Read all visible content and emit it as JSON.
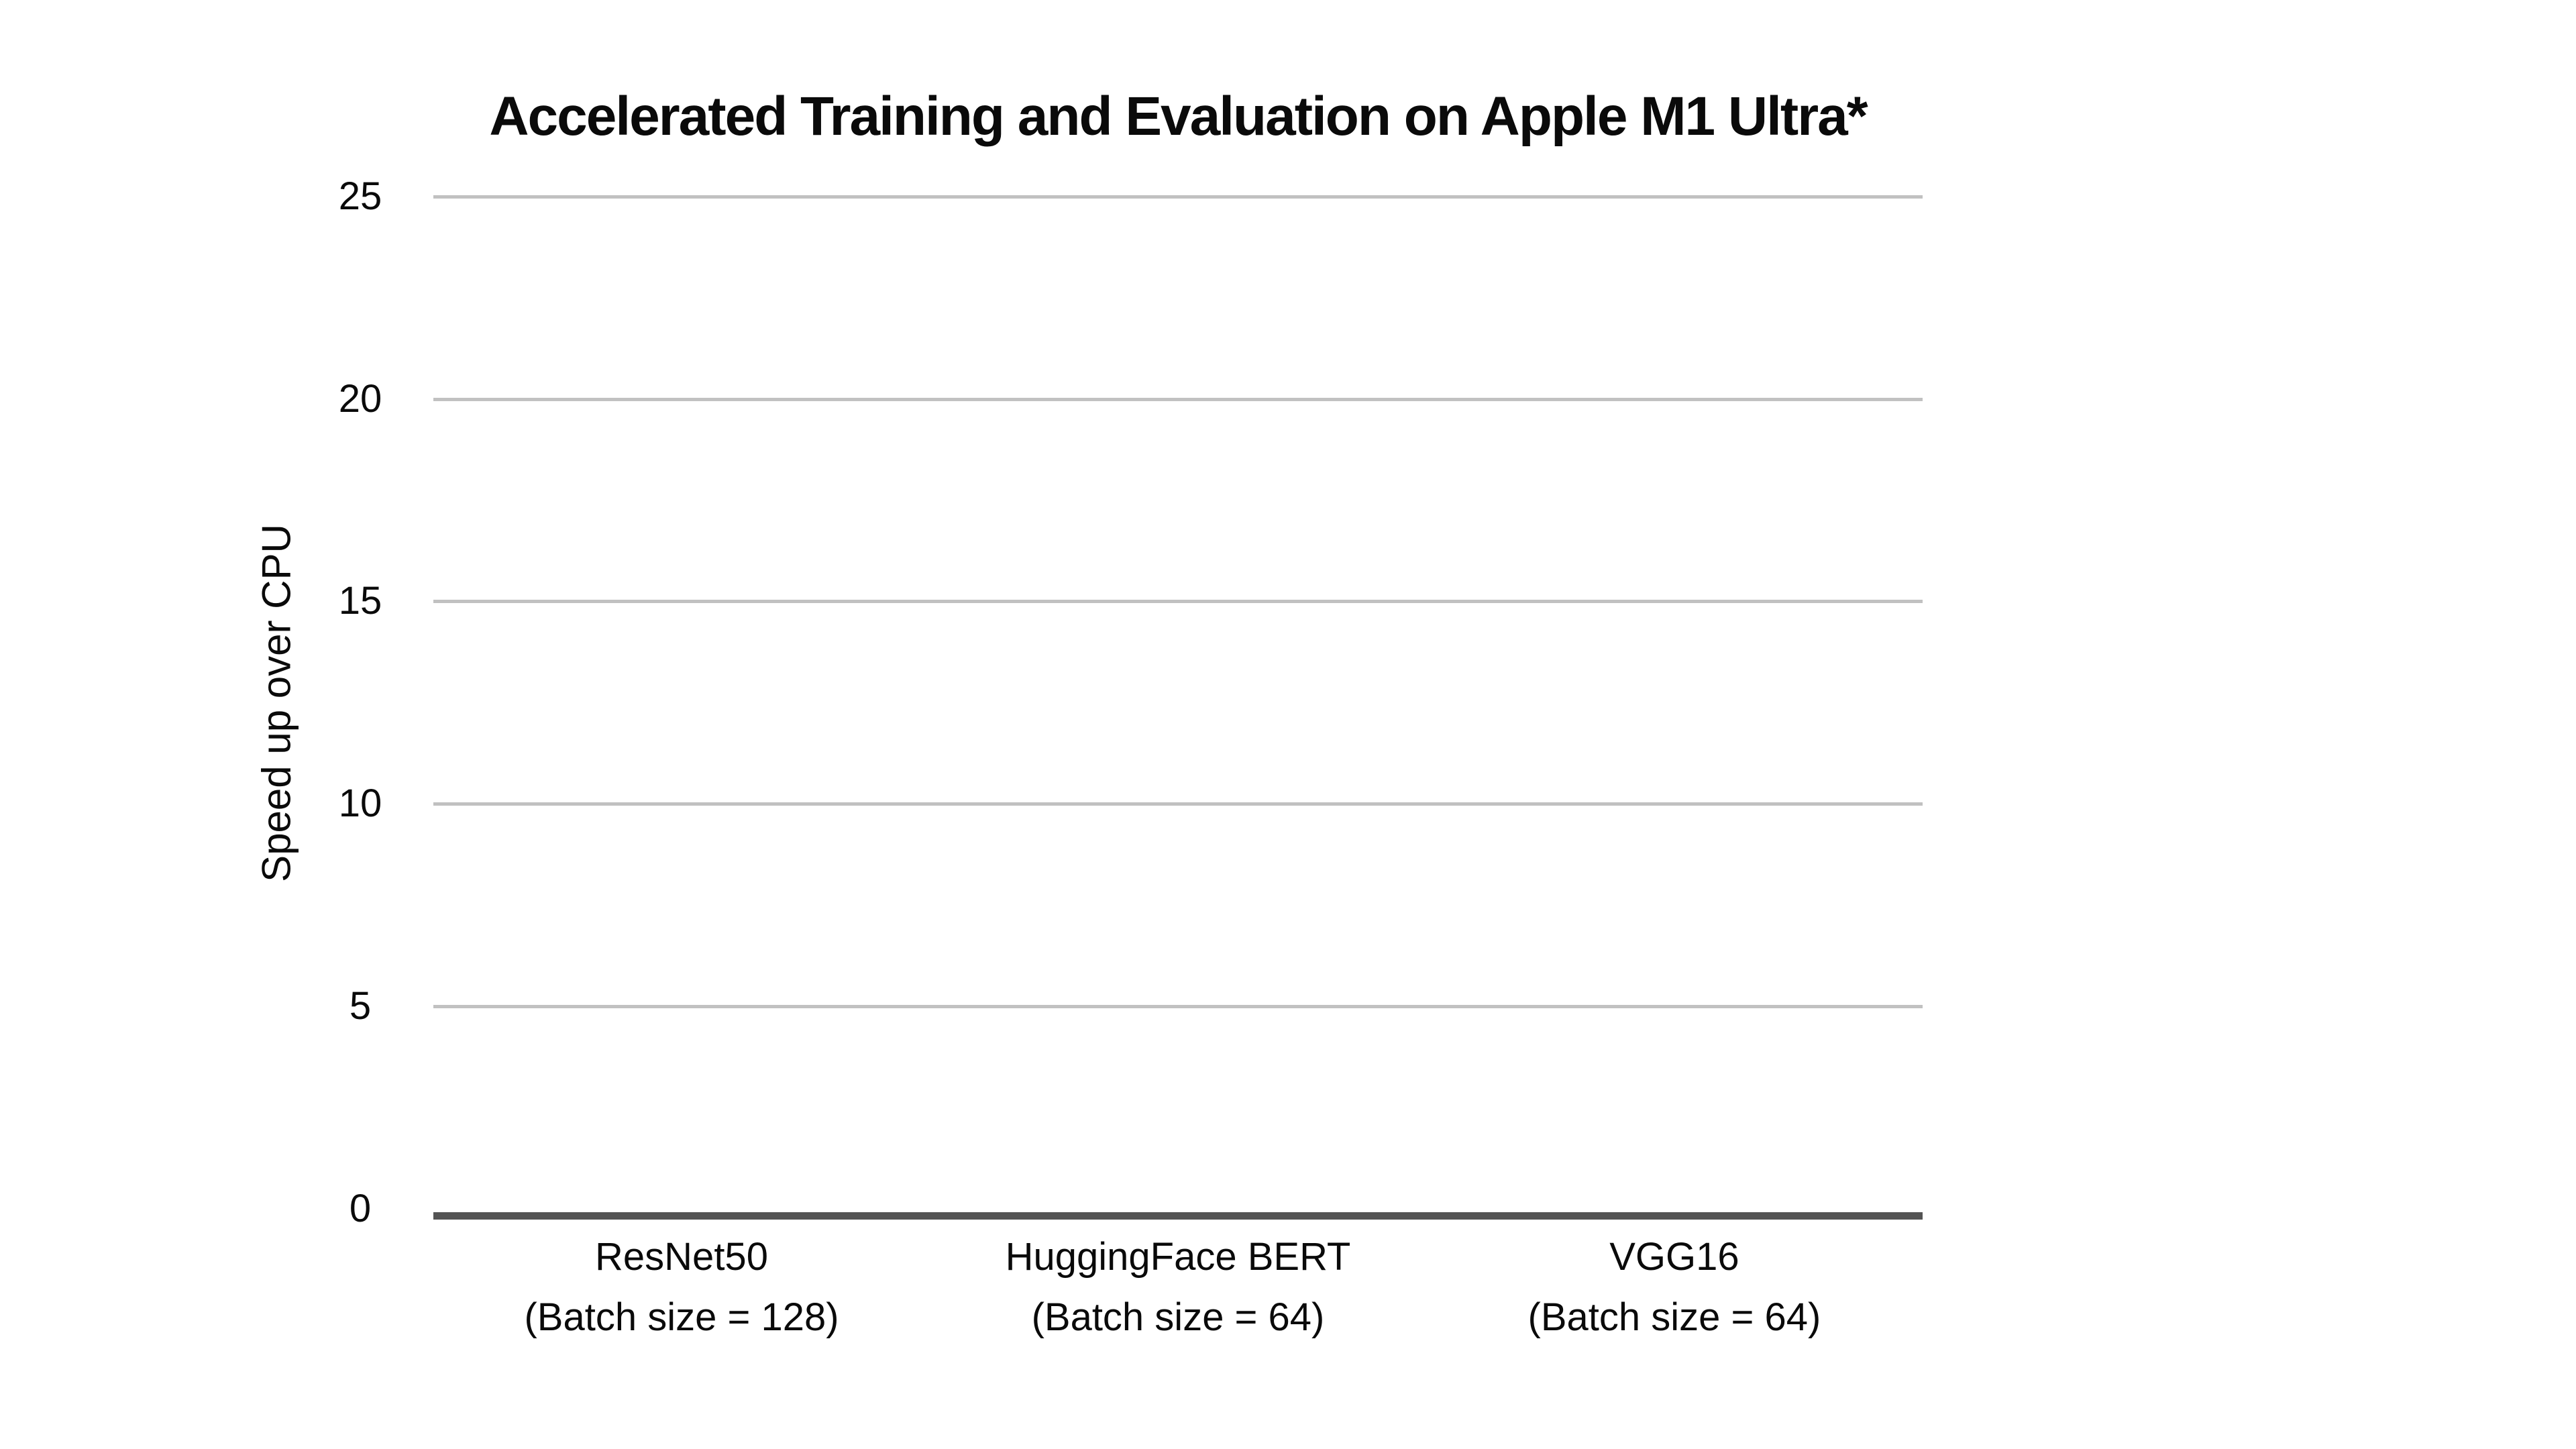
{
  "chart": {
    "title": "Accelerated Training and Evaluation on Apple M1 Ultra*",
    "y_axis": {
      "label": "Speed up over CPU",
      "tick_labels": [
        "25",
        "20",
        "15",
        "10",
        "5",
        "0"
      ]
    },
    "categories": [
      {
        "model": "ResNet50",
        "batch": "(Batch size = 128)"
      },
      {
        "model": "HuggingFace BERT",
        "batch": "(Batch size = 64)"
      },
      {
        "model": "VGG16",
        "batch": "(Batch size = 64)"
      }
    ]
  },
  "chart_data": {
    "type": "bar",
    "title": "Accelerated Training and Evaluation on Apple M1 Ultra*",
    "xlabel": "",
    "ylabel": "Speed up over CPU",
    "categories": [
      "ResNet50 (Batch size = 128)",
      "HuggingFace BERT (Batch size = 64)",
      "VGG16 (Batch size = 64)"
    ],
    "values": [
      0,
      0,
      0
    ],
    "bars_visible": false,
    "ylim": [
      0,
      25
    ],
    "yticks": [
      0,
      5,
      10,
      15,
      20,
      25
    ],
    "grid": true,
    "legend_position": "none",
    "colors": {
      "background": "#ffffff",
      "text": "#0a0a0a",
      "gridline": "#c1c1c1",
      "axis_line": "#545454"
    }
  }
}
